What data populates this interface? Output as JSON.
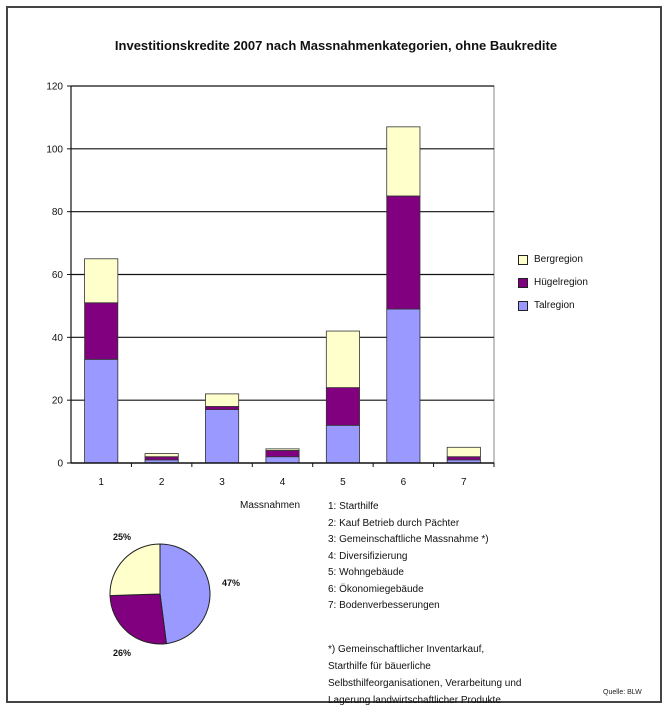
{
  "chart_data": [
    {
      "type": "bar",
      "stacked": true,
      "title": "Investitionskredite 2007 nach Massnahmenkategorien, ohne Baukredite",
      "xlabel": "Massnahmen",
      "categories": [
        "1",
        "2",
        "3",
        "4",
        "5",
        "6",
        "7"
      ],
      "ylim": [
        0,
        120
      ],
      "yticks": [
        "0",
        "20",
        "40",
        "60",
        "80",
        "100",
        "120"
      ],
      "grid": true,
      "legend_position": "right",
      "series": [
        {
          "name": "Talregion",
          "color": "#9999ff",
          "values": [
            33,
            1,
            17,
            2,
            12,
            49,
            1
          ]
        },
        {
          "name": "Hügelregion",
          "color": "#800080",
          "values": [
            18,
            1,
            1,
            2,
            12,
            36,
            1
          ]
        },
        {
          "name": "Bergregion",
          "color": "#ffffcc",
          "values": [
            14,
            1,
            4,
            0.5,
            18,
            22,
            3
          ]
        }
      ]
    },
    {
      "type": "pie",
      "labels": [
        "47%",
        "26%",
        "25%"
      ],
      "values": [
        47,
        26,
        25
      ],
      "colors": [
        "#9999ff",
        "#800080",
        "#ffffcc"
      ]
    }
  ],
  "measures": [
    "1: Starthilfe",
    "2: Kauf Betrieb durch Pächter",
    "3: Gemeinschaftliche Massnahme *)",
    "4: Diversifizierung",
    "5: Wohngebäude",
    "6: Ökonomiegebäude",
    "7: Bodenverbesserungen"
  ],
  "footnote": [
    "*) Gemeinschaftlicher Inventarkauf,",
    "Starthilfe für bäuerliche",
    "Selbsthilfeorganisationen, Verarbeitung und",
    "Lagerung landwirtschaftlicher Produkte"
  ],
  "source": "Quelle: BLW"
}
